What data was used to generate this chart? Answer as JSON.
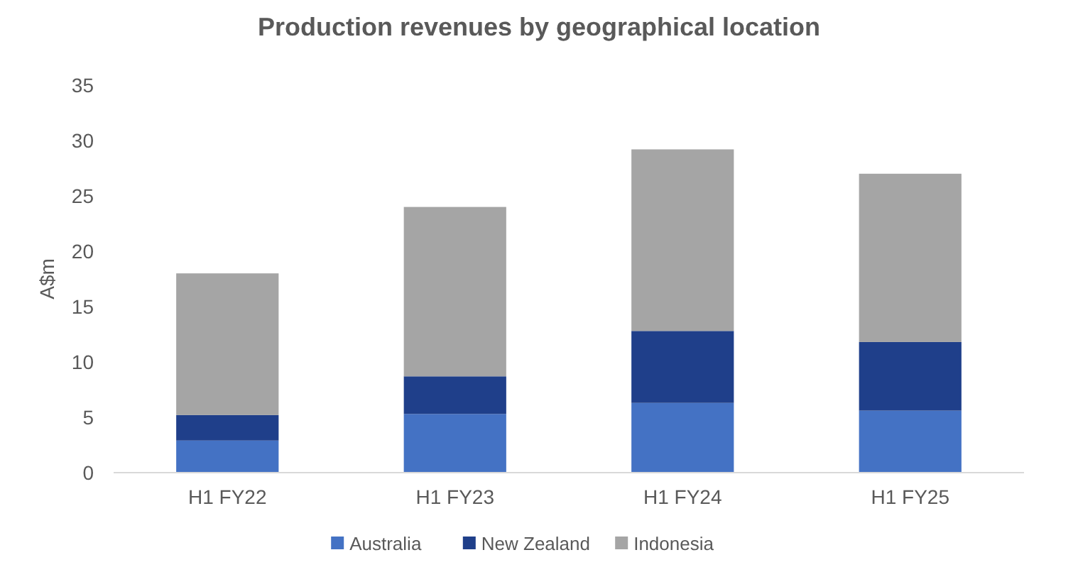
{
  "chart_data": {
    "type": "bar",
    "title": "Production revenues by geographical location",
    "ylabel": "A$m",
    "categories": [
      "H1 FY22",
      "H1 FY23",
      "H1 FY24",
      "H1 FY25"
    ],
    "stacked": true,
    "ylim": [
      0,
      35
    ],
    "yticks": [
      0,
      5,
      10,
      15,
      20,
      25,
      30,
      35
    ],
    "grid": false,
    "legend": "bottom",
    "series": [
      {
        "name": "Australia",
        "color": "#4472c4",
        "values": [
          2.9,
          5.3,
          6.3,
          5.6
        ]
      },
      {
        "name": "New Zealand",
        "color": "#1f3f8a",
        "values": [
          2.3,
          3.4,
          6.5,
          6.2
        ]
      },
      {
        "name": "Indonesia",
        "color": "#a5a5a5",
        "values": [
          12.8,
          15.3,
          16.4,
          15.2
        ]
      }
    ]
  }
}
